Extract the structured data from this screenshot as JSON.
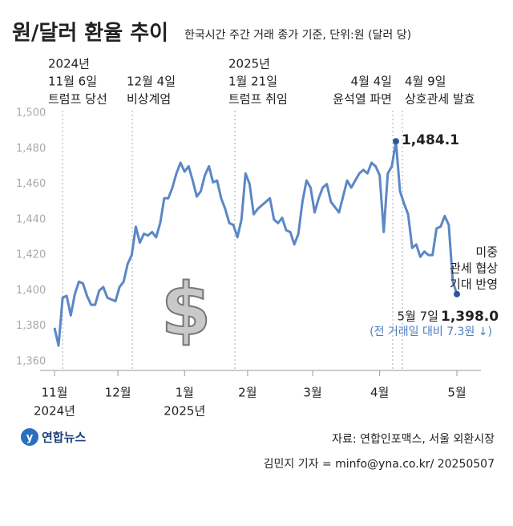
{
  "chart_data": {
    "type": "line",
    "title": "원/달러 환율 추이",
    "subtitle": "한국시간 주간 거래 종가 기준, 단위:원 (달러 당)",
    "xlim": [
      0,
      99
    ],
    "xticks": [
      {
        "value": 0,
        "label": "11월"
      },
      {
        "value": 15.6,
        "label": "12월"
      },
      {
        "value": 32,
        "label": "1월"
      },
      {
        "value": 47.5,
        "label": "2월"
      },
      {
        "value": 63.5,
        "label": "3월"
      },
      {
        "value": 80,
        "label": "4월"
      },
      {
        "value": 99,
        "label": "5월"
      }
    ],
    "xticks_year": [
      {
        "value": 0,
        "label": "2024년"
      },
      {
        "value": 32,
        "label": "2025년"
      }
    ],
    "ylim": [
      1355,
      1500
    ],
    "yticks": [
      {
        "value": 1360,
        "label": "1,360"
      },
      {
        "value": 1380,
        "label": "1,380"
      },
      {
        "value": 1400,
        "label": "1,400"
      },
      {
        "value": 1420,
        "label": "1,420"
      },
      {
        "value": 1440,
        "label": "1,440"
      },
      {
        "value": 1460,
        "label": "1,460"
      },
      {
        "value": 1480,
        "label": "1,480"
      },
      {
        "value": 1500,
        "label": "1,500"
      }
    ],
    "grid": false,
    "series": [
      {
        "name": "원/달러 환율",
        "color": "#5b87c6",
        "values": [
          1379,
          1369,
          1396,
          1397,
          1386,
          1398,
          1405,
          1404,
          1397,
          1392,
          1392,
          1400,
          1402,
          1396,
          1395,
          1394,
          1402,
          1405,
          1415,
          1420,
          1436,
          1427,
          1432,
          1431,
          1433,
          1430,
          1438,
          1452,
          1452,
          1458,
          1466,
          1472,
          1467,
          1470,
          1462,
          1453,
          1456,
          1465,
          1470,
          1461,
          1462,
          1452,
          1446,
          1438,
          1437,
          1430,
          1440,
          1466,
          1460,
          1443,
          1446,
          1448,
          1450,
          1452,
          1440,
          1438,
          1441,
          1434,
          1433,
          1426,
          1432,
          1450,
          1462,
          1458,
          1444,
          1452,
          1458,
          1460,
          1450,
          1447,
          1444,
          1453,
          1462,
          1458,
          1462,
          1466,
          1468,
          1466,
          1472,
          1470,
          1465,
          1433,
          1466,
          1470,
          1484.1,
          1456,
          1449,
          1443,
          1424,
          1426,
          1419,
          1422,
          1420,
          1420,
          1435,
          1436,
          1442,
          1437,
          1405,
          1398.0
        ],
        "value_labels": [
          null,
          null,
          null,
          null,
          null,
          null,
          null,
          null,
          null,
          null,
          null,
          null,
          null,
          null,
          null,
          null,
          null,
          null,
          null,
          null,
          null,
          null,
          null,
          null,
          null,
          null,
          null,
          null,
          null,
          null,
          null,
          null,
          null,
          null,
          null,
          null,
          null,
          null,
          null,
          null,
          null,
          null,
          null,
          null,
          null,
          null,
          null,
          null,
          null,
          null,
          null,
          null,
          null,
          null,
          null,
          null,
          null,
          null,
          null,
          null,
          null,
          null,
          null,
          null,
          null,
          null,
          null,
          null,
          null,
          null,
          null,
          null,
          null,
          null,
          null,
          null,
          null,
          null,
          null,
          null,
          null,
          null,
          null,
          null,
          "1,484.1",
          null,
          null,
          null,
          null,
          null,
          null,
          null,
          null,
          null,
          null,
          null,
          null,
          null,
          null,
          "1,398.0"
        ]
      }
    ],
    "annotations": [
      {
        "lines": [
          "2024년",
          "11월 6일",
          "트럼프 당선"
        ]
      },
      {
        "lines": [
          "12월 4일",
          "비상계엄"
        ]
      },
      {
        "lines": [
          "2025년",
          "1월 21일",
          "트럼프 취임"
        ]
      },
      {
        "lines": [
          "4월 4일",
          "윤석열 파면"
        ]
      },
      {
        "lines": [
          "4월 9일",
          "상호관세 발효"
        ]
      }
    ],
    "end_date": "5월 7일",
    "change_note": "(전 거래일 대비 7.3원 ↓)",
    "side_note": [
      "미중",
      "관세 협상",
      "기대 반영"
    ],
    "logo": "연합뉴스",
    "source": "자료: 연합인포맥스, 서울 외환시장",
    "credit": "김민지 기자 = minfo@yna.co.kr/ 20250507"
  }
}
